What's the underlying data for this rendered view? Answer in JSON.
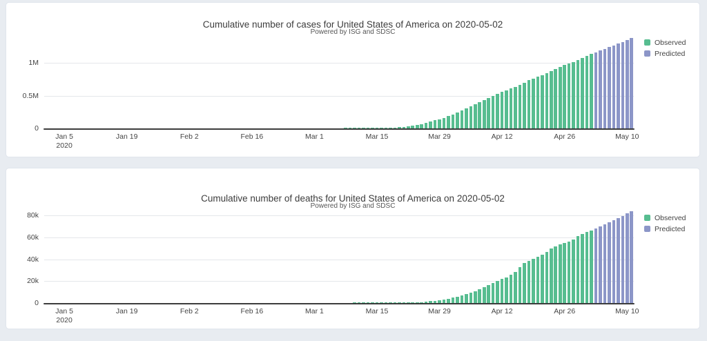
{
  "page": {
    "background_color": "#e8ecf1",
    "card_background_color": "#ffffff"
  },
  "chart_data": [
    {
      "type": "bar",
      "title": "Cumulative number of cases for United States of America on 2020-05-02",
      "subtitle": "Powered by ISG and SDSC",
      "xlabel": "",
      "ylabel": "",
      "x_unit": "day",
      "x_range": [
        "2020-01-01",
        "2020-05-11"
      ],
      "ylim": [
        0,
        1400000
      ],
      "grid": true,
      "legend_position": "top-right",
      "yticks": [
        {
          "value": 0,
          "label": "0"
        },
        {
          "value": 500000,
          "label": "0.5M"
        },
        {
          "value": 1000000,
          "label": "1M"
        }
      ],
      "x_ticks": [
        {
          "date": "2020-01-05",
          "label": "Jan 5",
          "sublabel": "2020"
        },
        {
          "date": "2020-01-19",
          "label": "Jan 19"
        },
        {
          "date": "2020-02-02",
          "label": "Feb 2"
        },
        {
          "date": "2020-02-16",
          "label": "Feb 16"
        },
        {
          "date": "2020-03-01",
          "label": "Mar 1"
        },
        {
          "date": "2020-03-15",
          "label": "Mar 15"
        },
        {
          "date": "2020-03-29",
          "label": "Mar 29"
        },
        {
          "date": "2020-04-12",
          "label": "Apr 12"
        },
        {
          "date": "2020-04-26",
          "label": "Apr 26"
        },
        {
          "date": "2020-05-10",
          "label": "May 10"
        }
      ],
      "series": [
        {
          "name": "Observed",
          "color": "#57bd90",
          "start_date": "2020-01-01",
          "values": [
            0,
            0,
            0,
            0,
            0,
            0,
            0,
            0,
            0,
            0,
            0,
            0,
            0,
            0,
            0,
            0,
            0,
            0,
            0,
            0,
            1,
            1,
            1,
            2,
            2,
            5,
            5,
            5,
            5,
            6,
            7,
            8,
            8,
            11,
            11,
            11,
            11,
            11,
            11,
            11,
            11,
            12,
            12,
            13,
            13,
            13,
            13,
            13,
            13,
            13,
            13,
            15,
            15,
            15,
            15,
            15,
            15,
            16,
            16,
            24,
            30,
            53,
            73,
            104,
            174,
            222,
            337,
            451,
            519,
            711,
            1109,
            1561,
            2157,
            2870,
            3611,
            4596,
            6344,
            9197,
            13663,
            20030,
            26025,
            33073,
            43843,
            53736,
            65778,
            83836,
            101657,
            121465,
            140909,
            161831,
            188172,
            213372,
            243762,
            275586,
            308853,
            337072,
            366667,
            396223,
            429052,
            461437,
            496535,
            526396,
            555313,
            580619,
            607670,
            636350,
            667592,
            699706,
            732197,
            759086,
            784326,
            811865,
            840351,
            869170,
            905358,
            938154,
            965785,
            988197,
            1012582,
            1039909,
            1069424,
            1103461,
            1132539
          ]
        },
        {
          "name": "Predicted",
          "color": "#8c96c8",
          "start_date": "2020-05-03",
          "values": [
            1159000,
            1186000,
            1213000,
            1240000,
            1267000,
            1294000,
            1321000,
            1347000,
            1374000
          ]
        }
      ]
    },
    {
      "type": "bar",
      "title": "Cumulative number of deaths for United States of America on 2020-05-02",
      "subtitle": "Powered by ISG and SDSC",
      "xlabel": "",
      "ylabel": "",
      "x_unit": "day",
      "x_range": [
        "2020-01-01",
        "2020-05-11"
      ],
      "ylim": [
        0,
        88000
      ],
      "grid": true,
      "legend_position": "top-right",
      "yticks": [
        {
          "value": 0,
          "label": "0"
        },
        {
          "value": 20000,
          "label": "20k"
        },
        {
          "value": 40000,
          "label": "40k"
        },
        {
          "value": 60000,
          "label": "60k"
        },
        {
          "value": 80000,
          "label": "80k"
        }
      ],
      "x_ticks": [
        {
          "date": "2020-01-05",
          "label": "Jan 5",
          "sublabel": "2020"
        },
        {
          "date": "2020-01-19",
          "label": "Jan 19"
        },
        {
          "date": "2020-02-02",
          "label": "Feb 2"
        },
        {
          "date": "2020-02-16",
          "label": "Feb 16"
        },
        {
          "date": "2020-03-01",
          "label": "Mar 1"
        },
        {
          "date": "2020-03-15",
          "label": "Mar 15"
        },
        {
          "date": "2020-03-29",
          "label": "Mar 29"
        },
        {
          "date": "2020-04-12",
          "label": "Apr 12"
        },
        {
          "date": "2020-04-26",
          "label": "Apr 26"
        },
        {
          "date": "2020-05-10",
          "label": "May 10"
        }
      ],
      "series": [
        {
          "name": "Observed",
          "color": "#57bd90",
          "start_date": "2020-01-01",
          "values": [
            0,
            0,
            0,
            0,
            0,
            0,
            0,
            0,
            0,
            0,
            0,
            0,
            0,
            0,
            0,
            0,
            0,
            0,
            0,
            0,
            0,
            0,
            0,
            0,
            0,
            0,
            0,
            0,
            0,
            0,
            0,
            0,
            0,
            0,
            0,
            0,
            0,
            0,
            0,
            0,
            0,
            0,
            0,
            0,
            0,
            0,
            0,
            0,
            0,
            0,
            0,
            0,
            0,
            0,
            0,
            0,
            0,
            0,
            0,
            1,
            1,
            6,
            7,
            11,
            12,
            14,
            17,
            21,
            22,
            28,
            31,
            40,
            47,
            54,
            63,
            85,
            108,
            150,
            207,
            256,
            302,
            426,
            552,
            706,
            942,
            1209,
            1581,
            2026,
            2467,
            2978,
            3873,
            4757,
            5926,
            7087,
            8407,
            9619,
            10783,
            12722,
            14695,
            16478,
            18586,
            20463,
            22020,
            23529,
            25832,
            28326,
            32916,
            36773,
            38664,
            40661,
            42094,
            44447,
            46628,
            49954,
            51949,
            53934,
            54941,
            56259,
            58355,
            60967,
            63019,
            64943,
            66369
          ]
        },
        {
          "name": "Predicted",
          "color": "#8c96c8",
          "start_date": "2020-05-03",
          "values": [
            68300,
            70200,
            72100,
            74000,
            75900,
            77800,
            79800,
            81800,
            83800
          ]
        }
      ]
    }
  ]
}
